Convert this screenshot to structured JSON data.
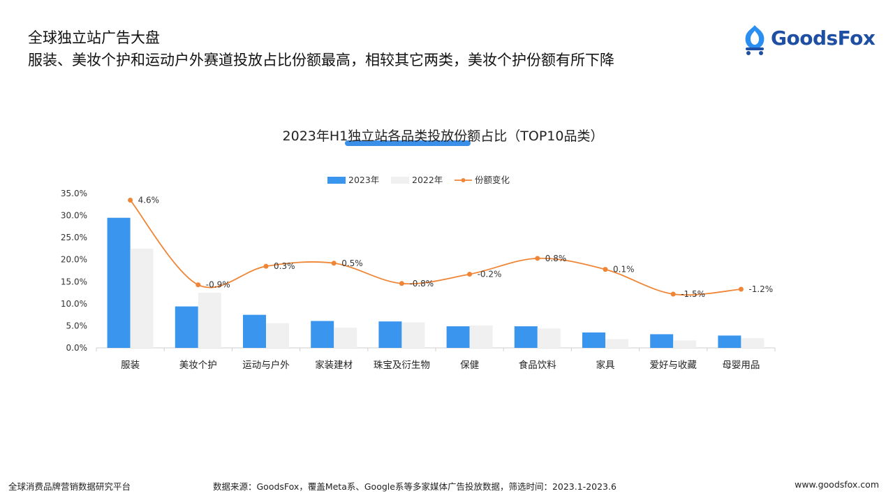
{
  "header": {
    "title": "全球独立站广告大盘",
    "subtitle": "服装、美妆个护和运动户外赛道投放占比份额最高，相较其它两类，美妆个护份额有所下降"
  },
  "brand": {
    "name": "GoodsFox",
    "color": "#1e4fa3",
    "icon": "goodsfox-logo-icon"
  },
  "footer": {
    "left": "全球消费品牌营销数据研究平台",
    "source": "数据来源：GoodsFox，覆盖Meta系、Google系等多家媒体广告投放数据，筛选时间：2023.1-2023.6",
    "url": "www.goodsfox.com"
  },
  "chart_data": {
    "type": "bar",
    "title": "2023年H1独立站各品类投放份额占比（TOP10品类）",
    "categories": [
      "服装",
      "美妆个护",
      "运动与户外",
      "家装建材",
      "珠宝及衍生物",
      "保健",
      "食品饮料",
      "家具",
      "爱好与收藏",
      "母婴用品"
    ],
    "series": [
      {
        "name": "2023年",
        "type": "bar",
        "color": "#3a95ef",
        "values": [
          29.5,
          9.4,
          7.5,
          6.1,
          6.0,
          4.9,
          4.9,
          3.5,
          3.1,
          2.8
        ]
      },
      {
        "name": "2022年",
        "type": "bar",
        "color": "#f0f0f0",
        "values": [
          22.5,
          12.5,
          5.6,
          4.6,
          5.8,
          5.1,
          4.4,
          2.0,
          1.7,
          2.2
        ]
      },
      {
        "name": "份额变化",
        "type": "line",
        "color": "#ef8535",
        "values": [
          33.5,
          14.3,
          18.5,
          19.2,
          14.6,
          16.7,
          20.3,
          17.8,
          12.2,
          13.3
        ],
        "labels": [
          "4.6%",
          "-0.9%",
          "0.3%",
          "0.5%",
          "-0.8%",
          "-0.2%",
          "0.8%",
          "0.1%",
          "-1.5%",
          "-1.2%"
        ]
      }
    ],
    "y_ticks": [
      "0.0%",
      "5.0%",
      "10.0%",
      "15.0%",
      "20.0%",
      "25.0%",
      "30.0%",
      "35.0%"
    ],
    "ylim": [
      0,
      35
    ],
    "legend_position": "top-center",
    "grid": false
  }
}
